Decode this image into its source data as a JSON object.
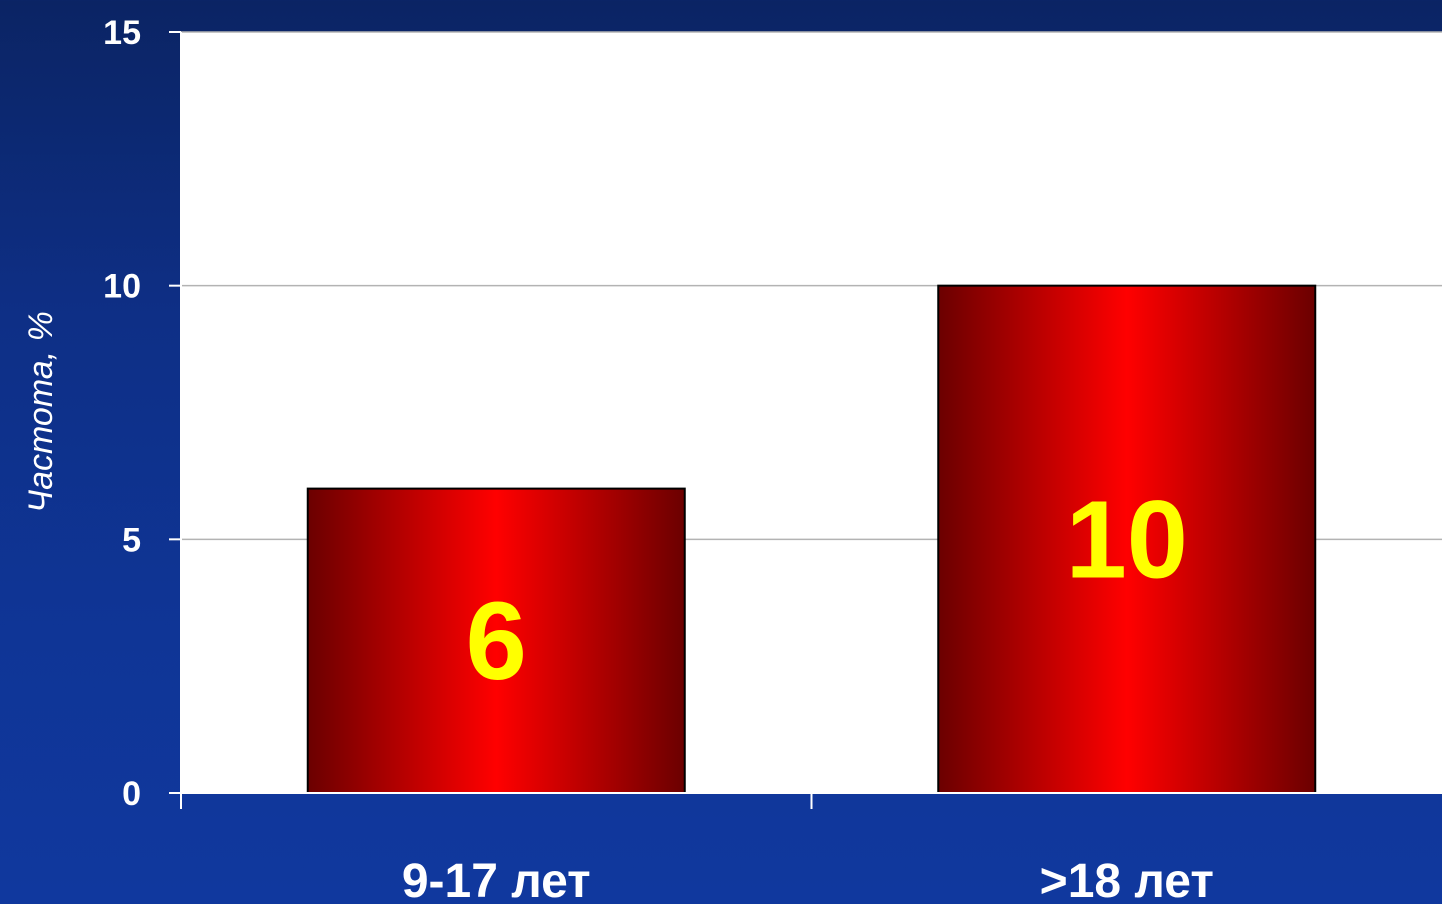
{
  "chart_data": {
    "type": "bar",
    "categories": [
      "9-17 лет",
      ">18 лет"
    ],
    "values": [
      6,
      10
    ],
    "data_labels": [
      "6",
      "10"
    ],
    "title": "",
    "xlabel": "",
    "ylabel": "Частота, %",
    "ylim": [
      0,
      15
    ],
    "yticks": [
      0,
      5,
      10,
      15
    ],
    "ytick_labels": [
      "0",
      "5",
      "10",
      "15"
    ],
    "grid": true,
    "legend": "none"
  },
  "colors": {
    "background": "#0e2f86",
    "plot_area": "#ffffff",
    "bar_dark": "#6b0000",
    "bar_bright": "#ff0000",
    "data_label": "#ffff00",
    "axis_text": "#ffffff",
    "gridline": "#b3b3b3"
  }
}
